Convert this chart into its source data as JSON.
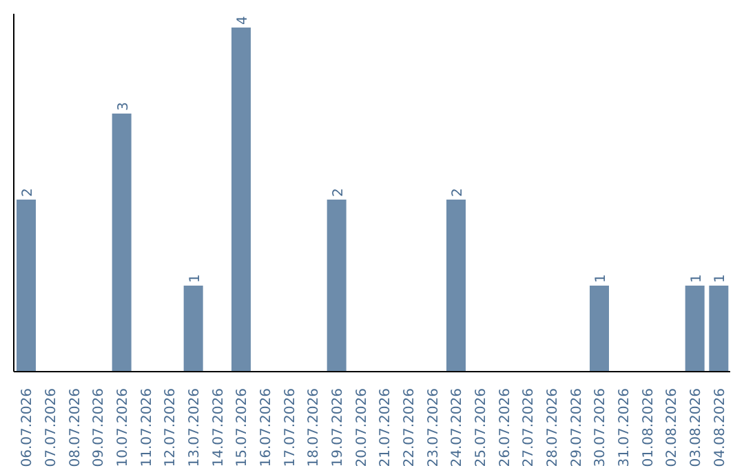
{
  "chart_data": {
    "type": "bar",
    "categories": [
      "06.07.2026",
      "07.07.2026",
      "08.07.2026",
      "09.07.2026",
      "10.07.2026",
      "11.07.2026",
      "12.07.2026",
      "13.07.2026",
      "14.07.2026",
      "15.07.2026",
      "16.07.2026",
      "17.07.2026",
      "18.07.2026",
      "19.07.2026",
      "20.07.2026",
      "21.07.2026",
      "22.07.2026",
      "23.07.2026",
      "24.07.2026",
      "25.07.2026",
      "26.07.2026",
      "27.07.2026",
      "28.07.2026",
      "29.07.2026",
      "30.07.2026",
      "31.07.2026",
      "01.08.2026",
      "02.08.2026",
      "03.08.2026",
      "04.08.2026"
    ],
    "values": [
      2,
      0,
      0,
      0,
      3,
      0,
      0,
      1,
      0,
      4,
      0,
      0,
      0,
      2,
      0,
      0,
      0,
      0,
      2,
      0,
      0,
      0,
      0,
      0,
      1,
      0,
      0,
      0,
      1,
      1
    ],
    "value_labels": [
      "2",
      null,
      null,
      null,
      "3",
      null,
      null,
      "1",
      null,
      "4",
      null,
      null,
      null,
      "2",
      null,
      null,
      null,
      null,
      "2",
      null,
      null,
      null,
      null,
      null,
      "1",
      null,
      null,
      null,
      "1",
      "1"
    ],
    "color": "#6d8cab"
  }
}
